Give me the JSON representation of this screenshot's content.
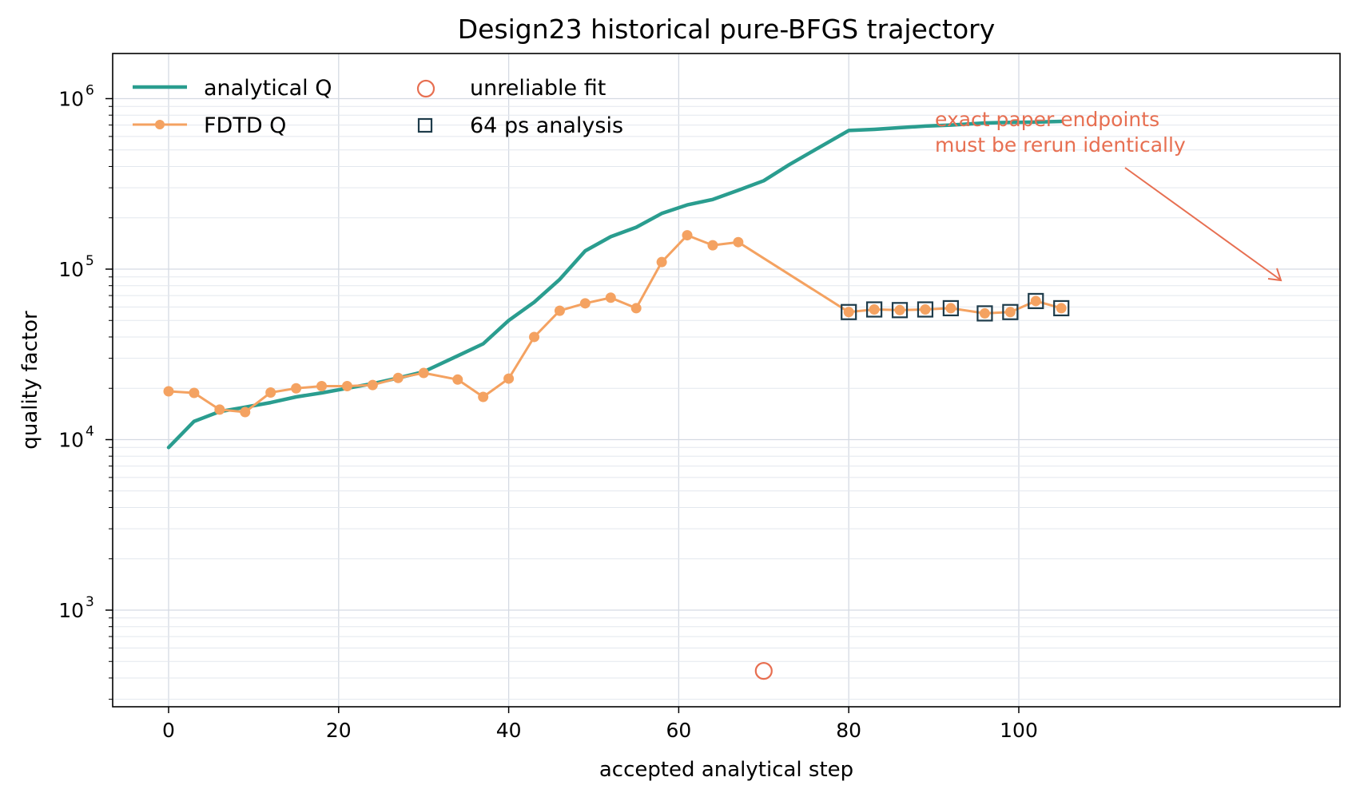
{
  "chart_data": {
    "type": "line",
    "title": "Design23 historical pure-BFGS trajectory",
    "xlabel": "accepted analytical step",
    "ylabel": "quality factor",
    "xlim": [
      -5,
      110
    ],
    "ylim": [
      300,
      1100000
    ],
    "yscale": "log",
    "grid": true,
    "legend_position": "top-left",
    "x_ticks": [
      0,
      20,
      40,
      60,
      80,
      100
    ],
    "y_ticks": [
      {
        "base": "10",
        "exp": "3",
        "value": 1000
      },
      {
        "base": "10",
        "exp": "4",
        "value": 10000
      },
      {
        "base": "10",
        "exp": "5",
        "value": 100000
      },
      {
        "base": "10",
        "exp": "6",
        "value": 1000000
      }
    ],
    "series": [
      {
        "name": "analytical Q",
        "color": "#2a9d8f",
        "style": "line",
        "x": [
          0,
          3,
          6,
          9,
          12,
          15,
          18,
          21,
          24,
          27,
          30,
          34,
          37,
          40,
          43,
          46,
          49,
          52,
          55,
          58,
          61,
          64,
          67,
          70,
          73,
          76,
          80,
          83,
          86,
          89,
          92,
          96,
          99,
          102,
          105
        ],
        "y": [
          9000,
          12800,
          14600,
          15500,
          16500,
          17800,
          18800,
          20000,
          21300,
          23000,
          25000,
          31000,
          36500,
          50000,
          64000,
          87000,
          128000,
          155000,
          176000,
          212000,
          238000,
          256000,
          290000,
          330000,
          410000,
          500000,
          650000,
          660000,
          675000,
          690000,
          700000,
          720000,
          725000,
          728000,
          735000
        ]
      },
      {
        "name": "FDTD Q",
        "color": "#f4a261",
        "style": "line-markers",
        "x": [
          0,
          3,
          6,
          9,
          12,
          15,
          18,
          21,
          24,
          27,
          30,
          34,
          37,
          40,
          43,
          46,
          49,
          52,
          55,
          58,
          61,
          64,
          67,
          80,
          83,
          86,
          89,
          92,
          96,
          99,
          102,
          105
        ],
        "y": [
          19200,
          18800,
          15000,
          14500,
          18900,
          20000,
          20600,
          20600,
          20900,
          23000,
          24600,
          22500,
          17800,
          22800,
          40000,
          57000,
          63000,
          68000,
          59000,
          110000,
          158000,
          138000,
          144000,
          56000,
          58000,
          57500,
          58000,
          59000,
          55000,
          56000,
          65000,
          59000
        ]
      },
      {
        "name": "unreliable fit",
        "color": "#e76f51",
        "style": "hollow-circle",
        "x": [
          70
        ],
        "y": [
          440
        ]
      },
      {
        "name": "64 ps analysis",
        "color": "#1d3b4a",
        "style": "hollow-square",
        "x": [
          80,
          83,
          86,
          89,
          92,
          96,
          99,
          102,
          105
        ],
        "y": [
          56000,
          58000,
          57500,
          58000,
          59000,
          55000,
          56000,
          65000,
          59000
        ]
      }
    ],
    "annotation": {
      "lines": [
        "exact paper endpoints",
        "must be rerun identically"
      ],
      "color": "#e76f51",
      "arrow_to": {
        "x": 105,
        "y": 59000
      }
    }
  }
}
